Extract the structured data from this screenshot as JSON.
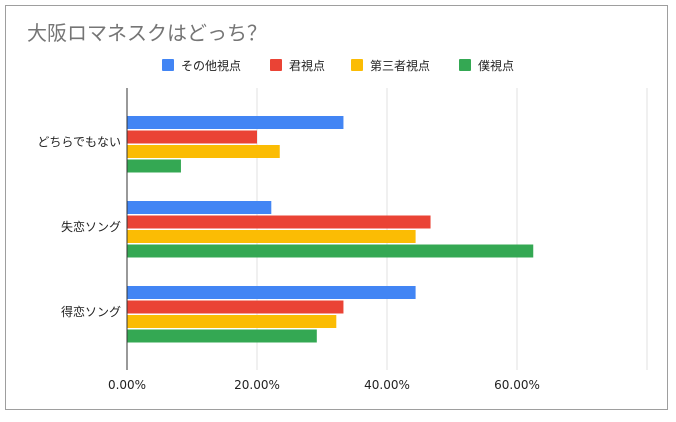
{
  "chart_data": {
    "type": "bar",
    "orientation": "horizontal",
    "title": "大阪ロマネスクはどっち？",
    "categories": [
      "どちらでもない",
      "失恋ソング",
      "得恋ソング"
    ],
    "series": [
      {
        "name": "その他視点",
        "color": "#4285f4",
        "values": [
          33.3,
          22.2,
          44.4
        ]
      },
      {
        "name": "君視点",
        "color": "#ea4335",
        "values": [
          20.0,
          46.7,
          33.3
        ]
      },
      {
        "name": "第三者視点",
        "color": "#fbbc04",
        "values": [
          23.5,
          44.4,
          32.2
        ]
      },
      {
        "name": "僕視点",
        "color": "#34a853",
        "values": [
          8.3,
          62.5,
          29.2
        ]
      }
    ],
    "xlim": [
      0,
      80
    ],
    "xticks": [
      "0.00%",
      "20.00%",
      "40.00%",
      "60.00%"
    ],
    "grid": true,
    "legend_position": "top"
  }
}
